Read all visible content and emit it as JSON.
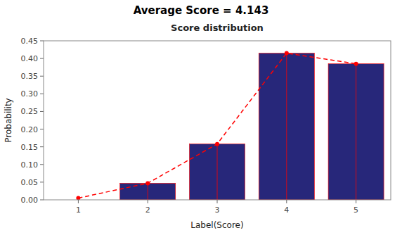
{
  "chart_data": {
    "type": "bar",
    "title": "Score distribution",
    "subtitle": "Average Score = 4.143",
    "x_label": "Label(Score)",
    "y_label": "Probability",
    "categories": [
      1,
      2,
      3,
      4,
      5
    ],
    "series": [
      {
        "type": "bar",
        "color": "#27277a",
        "values": [
          0.0,
          0.047,
          0.158,
          0.415,
          0.385
        ]
      },
      {
        "type": "line",
        "color": "#ff0000",
        "line_style": "dashed",
        "marker": "circle",
        "values": [
          0.005,
          0.047,
          0.158,
          0.415,
          0.385
        ]
      }
    ],
    "ylim": [
      0,
      0.45
    ],
    "yticks": [
      {
        "value": 0,
        "label": "0.00"
      },
      0.05,
      {
        "value": 0.1,
        "label": "0.10"
      },
      0.15,
      {
        "value": 0.2,
        "label": "0.20"
      },
      0.25,
      {
        "value": 0.3,
        "label": "0.30"
      },
      0.35,
      {
        "value": 0.4,
        "label": "0.40"
      },
      0.45
    ],
    "grid": false
  }
}
